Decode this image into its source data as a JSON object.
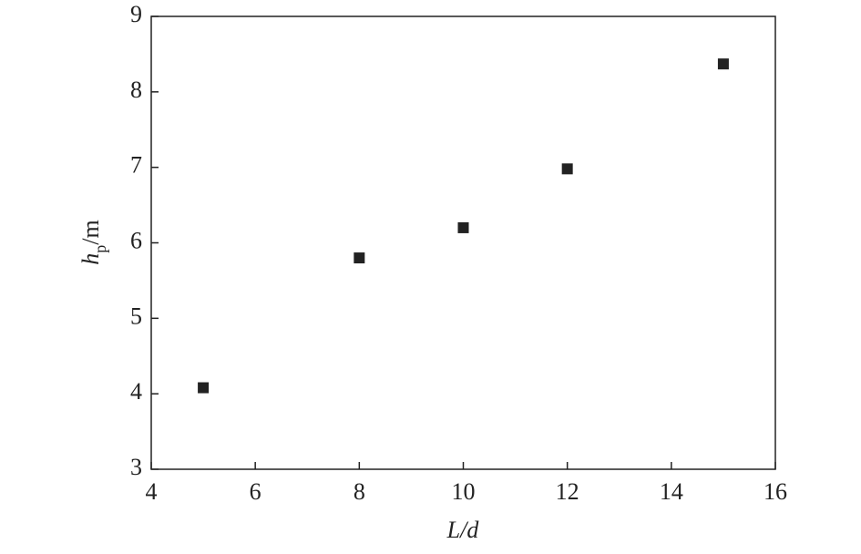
{
  "chart_data": {
    "type": "scatter",
    "xlabel": "L/d",
    "ylabel": "hp/m",
    "x": [
      5,
      8,
      10,
      12,
      15
    ],
    "values": [
      4.08,
      5.8,
      6.2,
      6.98,
      8.37
    ],
    "color": "#222222",
    "xlim": [
      4,
      16
    ],
    "xticks": [
      4,
      6,
      8,
      10,
      12,
      14,
      16
    ],
    "ylim": [
      3,
      9
    ],
    "yticks": [
      3,
      4,
      5,
      6,
      7,
      8,
      9
    ]
  }
}
